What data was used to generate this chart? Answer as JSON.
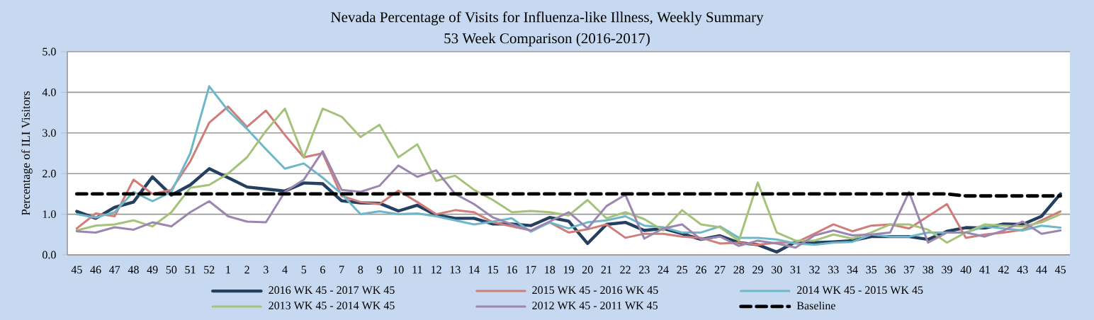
{
  "chart_data": {
    "type": "line",
    "title": "Nevada Percentage of Visits for Influenza-like Illness, Weekly Summary",
    "subtitle": "53 Week Comparison (2016-2017)",
    "ylabel": "Percentage of ILI Visitors",
    "categories": [
      "45",
      "46",
      "47",
      "48",
      "49",
      "50",
      "51",
      "52",
      "1",
      "2",
      "3",
      "4",
      "5",
      "6",
      "7",
      "8",
      "9",
      "10",
      "11",
      "12",
      "13",
      "14",
      "15",
      "16",
      "17",
      "18",
      "19",
      "20",
      "21",
      "22",
      "23",
      "24",
      "25",
      "26",
      "27",
      "28",
      "29",
      "30",
      "31",
      "32",
      "33",
      "34",
      "35",
      "36",
      "37",
      "38",
      "39",
      "40",
      "41",
      "42",
      "43",
      "44",
      "45"
    ],
    "ylim": [
      0,
      5
    ],
    "yticks": [
      {
        "value": 0,
        "label": "0.0"
      },
      {
        "value": 1,
        "label": "1.0"
      },
      {
        "value": 2,
        "label": "2.0"
      },
      {
        "value": 3,
        "label": "3.0"
      },
      {
        "value": 4,
        "label": "4.0"
      },
      {
        "value": 5,
        "label": "5.0"
      }
    ],
    "grid": "y",
    "legend": "bottom",
    "marker": "none",
    "line_style": "solid",
    "series": [
      {
        "name": "2016 WK 45 - 2017 WK 45",
        "color": "#243f60",
        "values": [
          1.07,
          0.9,
          1.17,
          1.3,
          1.92,
          1.47,
          1.72,
          2.12,
          1.9,
          1.67,
          1.62,
          1.57,
          1.77,
          1.75,
          1.33,
          1.28,
          1.27,
          1.08,
          1.22,
          0.98,
          0.9,
          0.9,
          0.76,
          0.76,
          0.72,
          0.92,
          0.83,
          0.28,
          0.75,
          0.8,
          0.6,
          0.65,
          0.52,
          0.38,
          0.47,
          0.3,
          0.25,
          0.07,
          0.32,
          0.3,
          0.32,
          0.35,
          0.45,
          0.45,
          0.45,
          0.38,
          0.58,
          0.67,
          0.66,
          0.76,
          0.75,
          0.95,
          1.5
        ]
      },
      {
        "name": "2015 WK 45 - 2016 WK 45",
        "color": "#d07d7a",
        "values": [
          0.65,
          1.02,
          0.95,
          1.85,
          1.5,
          1.6,
          2.3,
          3.25,
          3.65,
          3.15,
          3.55,
          2.95,
          2.4,
          2.5,
          1.45,
          1.3,
          1.25,
          1.58,
          1.3,
          1.0,
          1.1,
          1.05,
          0.8,
          0.7,
          0.6,
          0.8,
          0.55,
          0.63,
          0.75,
          0.42,
          0.52,
          0.52,
          0.45,
          0.42,
          0.28,
          0.3,
          0.25,
          0.3,
          0.3,
          0.52,
          0.75,
          0.58,
          0.72,
          0.75,
          0.65,
          0.95,
          1.25,
          0.42,
          0.5,
          0.55,
          0.62,
          0.85,
          1.07
        ]
      },
      {
        "name": "2014 WK 45 - 2015 WK 45",
        "color": "#6eb7c9",
        "values": [
          1.0,
          0.92,
          1.05,
          1.55,
          1.32,
          1.55,
          2.5,
          4.15,
          3.55,
          3.1,
          2.6,
          2.12,
          2.25,
          1.9,
          1.5,
          1.0,
          1.07,
          1.0,
          1.02,
          0.95,
          0.85,
          0.75,
          0.82,
          0.9,
          0.57,
          0.8,
          0.65,
          0.8,
          0.85,
          0.95,
          0.72,
          0.68,
          0.55,
          0.55,
          0.7,
          0.42,
          0.42,
          0.38,
          0.28,
          0.25,
          0.3,
          0.32,
          0.5,
          0.45,
          0.45,
          0.55,
          0.55,
          0.55,
          0.7,
          0.65,
          0.6,
          0.72,
          0.67
        ]
      },
      {
        "name": "2013 WK 45 - 2014 WK 45",
        "color": "#a5c27a",
        "values": [
          0.6,
          0.72,
          0.75,
          0.85,
          0.7,
          1.05,
          1.65,
          1.72,
          2.0,
          2.4,
          3.05,
          3.6,
          2.4,
          3.6,
          3.4,
          2.9,
          3.2,
          2.4,
          2.72,
          1.82,
          1.95,
          1.6,
          1.35,
          1.05,
          1.08,
          1.05,
          0.97,
          1.35,
          0.9,
          1.05,
          0.88,
          0.6,
          1.1,
          0.75,
          0.68,
          0.35,
          1.78,
          0.55,
          0.35,
          0.35,
          0.5,
          0.4,
          0.55,
          0.75,
          0.75,
          0.62,
          0.3,
          0.55,
          0.75,
          0.72,
          0.7,
          0.8,
          1.0
        ]
      },
      {
        "name": "2012 WK 45 - 2011 WK 45",
        "color": "#9b86b1",
        "values": [
          0.58,
          0.55,
          0.68,
          0.62,
          0.8,
          0.7,
          1.05,
          1.32,
          0.95,
          0.82,
          0.8,
          1.55,
          1.85,
          2.55,
          1.6,
          1.55,
          1.7,
          2.2,
          1.92,
          2.08,
          1.5,
          1.25,
          0.92,
          0.75,
          0.6,
          0.82,
          1.05,
          0.65,
          1.2,
          1.48,
          0.4,
          0.65,
          0.75,
          0.38,
          0.45,
          0.22,
          0.35,
          0.28,
          0.18,
          0.48,
          0.6,
          0.48,
          0.5,
          0.55,
          1.55,
          0.3,
          0.55,
          0.55,
          0.45,
          0.6,
          0.82,
          0.52,
          0.6
        ]
      },
      {
        "name": "Baseline",
        "color": "#000000",
        "line_style": "dashed",
        "values": [
          1.5,
          1.5,
          1.5,
          1.5,
          1.5,
          1.5,
          1.5,
          1.5,
          1.5,
          1.5,
          1.5,
          1.5,
          1.5,
          1.5,
          1.5,
          1.5,
          1.5,
          1.5,
          1.5,
          1.5,
          1.5,
          1.5,
          1.5,
          1.5,
          1.5,
          1.5,
          1.5,
          1.5,
          1.5,
          1.5,
          1.5,
          1.5,
          1.5,
          1.5,
          1.5,
          1.5,
          1.5,
          1.5,
          1.5,
          1.5,
          1.5,
          1.5,
          1.5,
          1.5,
          1.5,
          1.5,
          1.5,
          1.45,
          1.45,
          1.45,
          1.45,
          1.45,
          1.45
        ]
      }
    ]
  }
}
